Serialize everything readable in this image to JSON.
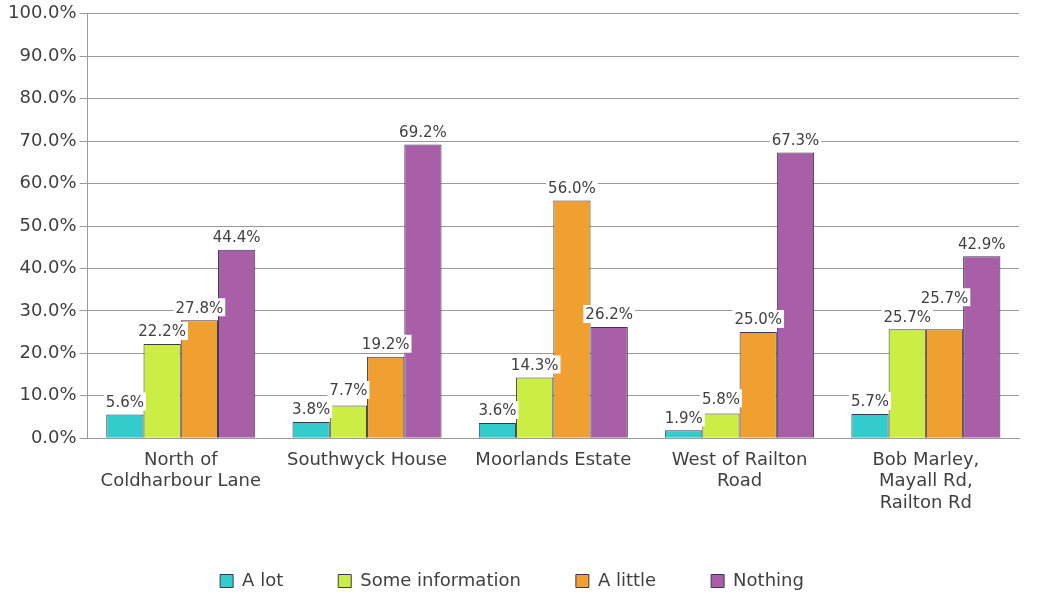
{
  "chart_data": {
    "type": "bar",
    "categories": [
      "North of Coldharbour Lane",
      "Southwyck House",
      "Moorlands Estate",
      "West of Railton Road",
      "Bob Marley, Mayall Rd, Railton Rd"
    ],
    "series": [
      {
        "name": "A lot",
        "color": "#33cccc",
        "values": [
          5.6,
          3.8,
          3.6,
          1.9,
          5.7
        ],
        "value_labels": [
          "5.6%",
          "3.8%",
          "3.6%",
          "1.9%",
          "5.7%"
        ]
      },
      {
        "name": "Some information",
        "color": "#ccee44",
        "values": [
          22.2,
          7.7,
          14.3,
          5.8,
          25.7
        ],
        "value_labels": [
          "22.2%",
          "7.7%",
          "14.3%",
          "5.8%",
          "25.7%"
        ]
      },
      {
        "name": "A little",
        "color": "#f0a030",
        "values": [
          27.8,
          19.2,
          56.0,
          25.0,
          25.7
        ],
        "value_labels": [
          "27.8%",
          "19.2%",
          "56.0%",
          "25.0%",
          "25.7%"
        ]
      },
      {
        "name": "Nothing",
        "color": "#a95ea8",
        "values": [
          44.4,
          69.2,
          26.2,
          67.3,
          42.9
        ],
        "value_labels": [
          "44.4%",
          "69.2%",
          "26.2%",
          "67.3%",
          "42.9%"
        ]
      }
    ],
    "ylim": [
      0,
      100
    ],
    "yticks": [
      {
        "value": 0,
        "label": "0.0%"
      },
      {
        "value": 10,
        "label": "10.0%"
      },
      {
        "value": 20,
        "label": "20.0%"
      },
      {
        "value": 30,
        "label": "30.0%"
      },
      {
        "value": 40,
        "label": "40.0%"
      },
      {
        "value": 50,
        "label": "50.0%"
      },
      {
        "value": 60,
        "label": "60.0%"
      },
      {
        "value": 70,
        "label": "70.0%"
      },
      {
        "value": 80,
        "label": "80.0%"
      },
      {
        "value": 90,
        "label": "90.0%"
      },
      {
        "value": 100,
        "label": "100.0%"
      }
    ],
    "grid": "y",
    "legend": "bottom"
  }
}
